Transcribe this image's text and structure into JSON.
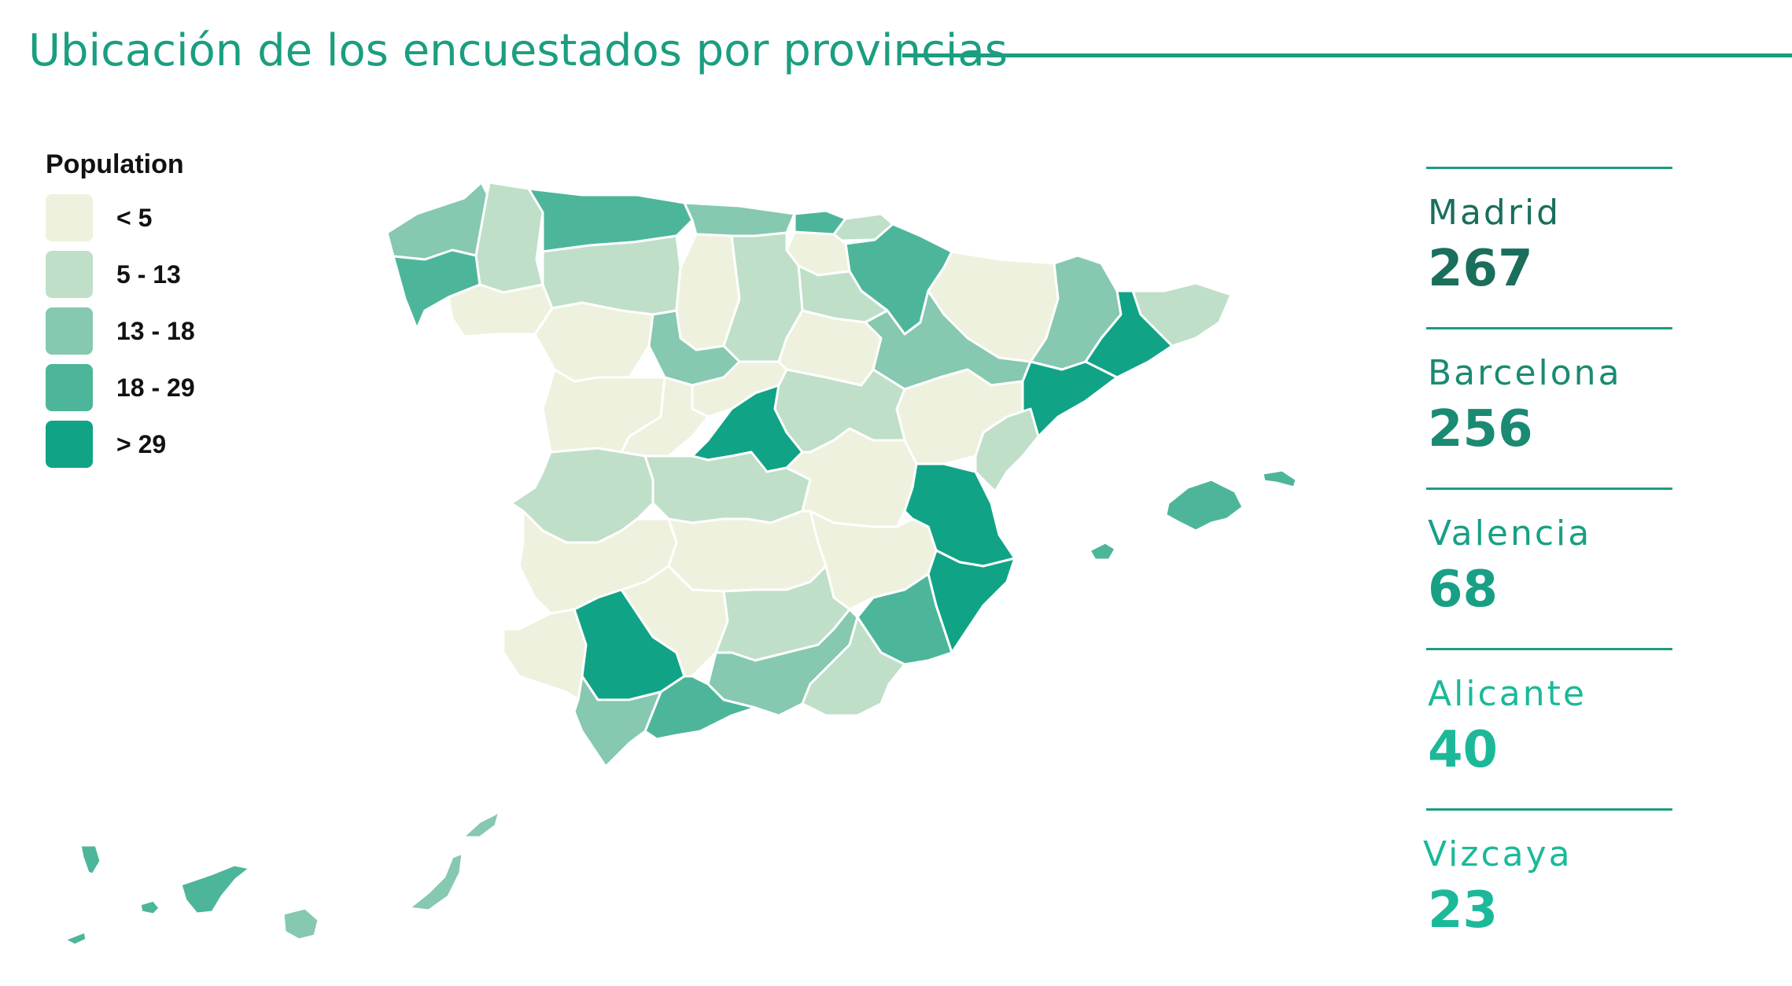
{
  "title": "Ubicación de los encuestados por provincias",
  "legend": {
    "title": "Population",
    "items": [
      {
        "label": "< 5",
        "color": "#eef1dd"
      },
      {
        "label": "5 - 13",
        "color": "#bfdfc8"
      },
      {
        "label": "13 - 18",
        "color": "#86c8b0"
      },
      {
        "label": "18 - 29",
        "color": "#4db69a"
      },
      {
        "label": "> 29",
        "color": "#11a386"
      }
    ]
  },
  "stats": [
    {
      "name": "Madrid",
      "value": "267",
      "color": "#1a6e5c"
    },
    {
      "name": "Barcelona",
      "value": "256",
      "color": "#1a8a72"
    },
    {
      "name": "Valencia",
      "value": "68",
      "color": "#17a085"
    },
    {
      "name": "Alicante",
      "value": "40",
      "color": "#1bb99a"
    },
    {
      "name": "Vizcaya",
      "value": "23",
      "color": "#1bb99a"
    }
  ]
}
